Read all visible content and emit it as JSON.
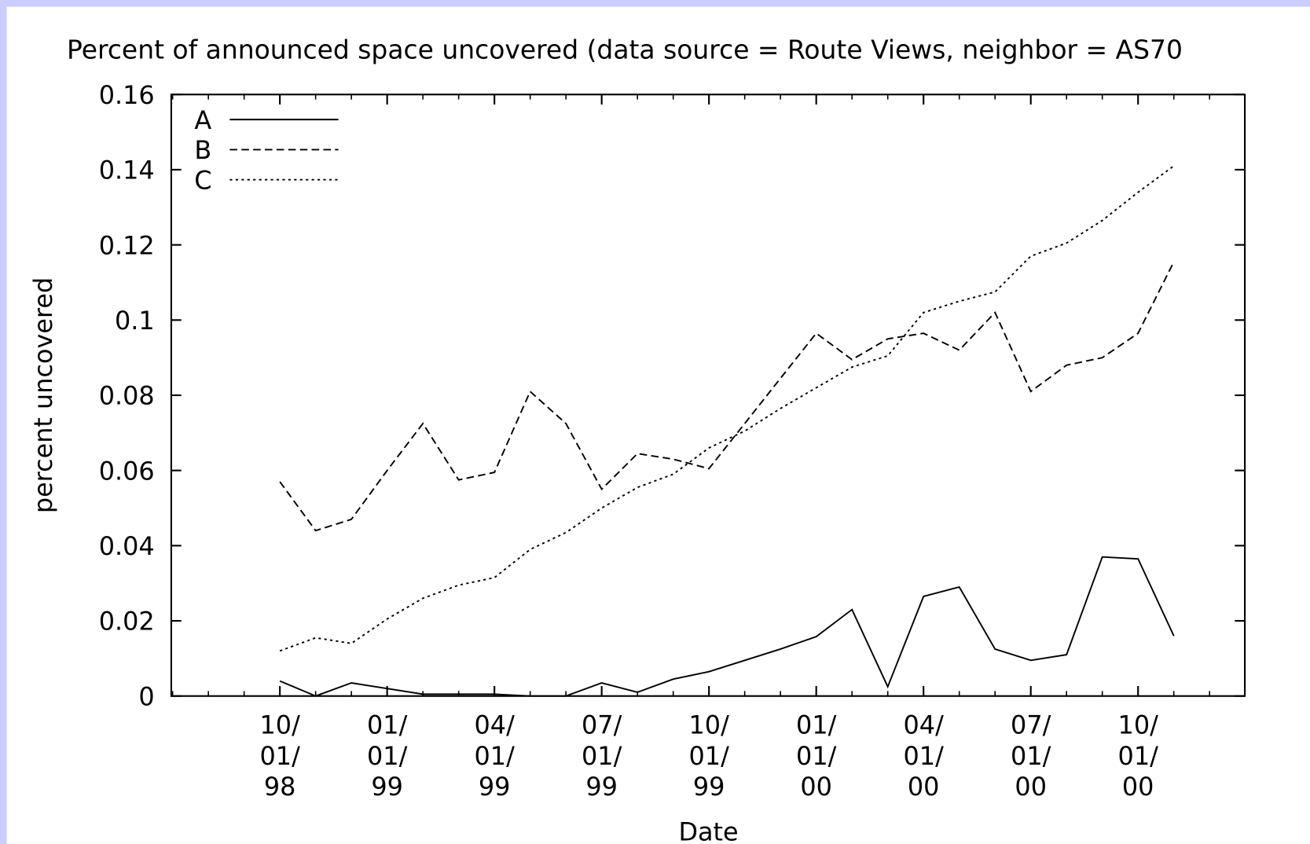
{
  "chart_data": {
    "type": "line",
    "title": "Percent of announced space uncovered (data source = Route Views, neighbor = AS70",
    "x_label": "Date",
    "y_label": "percent uncovered",
    "categories": [
      "10/\n01/\n98",
      null,
      null,
      "01/\n01/\n99",
      null,
      null,
      "04/\n01/\n99",
      null,
      null,
      "07/\n01/\n99",
      null,
      null,
      "10/\n01/\n99",
      null,
      null,
      "01/\n01/\n00",
      null,
      null,
      "04/\n01/\n00",
      null,
      null,
      "07/\n01/\n00",
      null,
      null,
      "10/\n01/\n00",
      null
    ],
    "series": [
      {
        "name": "A",
        "color": "#000000",
        "dash": "solid",
        "values": [
          0.004,
          0.0,
          0.0035,
          0.002,
          0.0005,
          0.0005,
          0.0005,
          0.0,
          0.0,
          0.0035,
          0.001,
          0.0045,
          0.0065,
          0.0095,
          0.0125,
          0.0158,
          0.023,
          0.0025,
          0.0265,
          0.029,
          0.0125,
          0.0095,
          0.011,
          0.037,
          0.0365,
          0.016
        ]
      },
      {
        "name": "B",
        "color": "#000000",
        "dash": "dashed",
        "values": [
          0.057,
          0.044,
          0.047,
          0.06,
          0.0725,
          0.0575,
          0.0595,
          0.081,
          0.0725,
          0.055,
          0.0645,
          0.063,
          0.0605,
          0.0725,
          0.0845,
          0.0965,
          0.0895,
          0.095,
          0.0965,
          0.092,
          0.102,
          0.081,
          0.088,
          0.09,
          0.0965,
          0.1155
        ]
      },
      {
        "name": "C",
        "color": "#000000",
        "dash": "dotted",
        "values": [
          0.012,
          0.0155,
          0.014,
          0.0205,
          0.026,
          0.0295,
          0.0315,
          0.039,
          0.0435,
          0.05,
          0.0555,
          0.059,
          0.066,
          0.0705,
          0.0765,
          0.082,
          0.0875,
          0.0905,
          0.102,
          0.105,
          0.1075,
          0.117,
          0.1205,
          0.1265,
          0.134,
          0.141
        ]
      }
    ],
    "ylim": [
      0,
      0.16
    ],
    "yticks": [
      0,
      0.02,
      0.04,
      0.06,
      0.08,
      0.1,
      0.12,
      0.14,
      0.16
    ],
    "legend": "upper left",
    "grid": false
  }
}
